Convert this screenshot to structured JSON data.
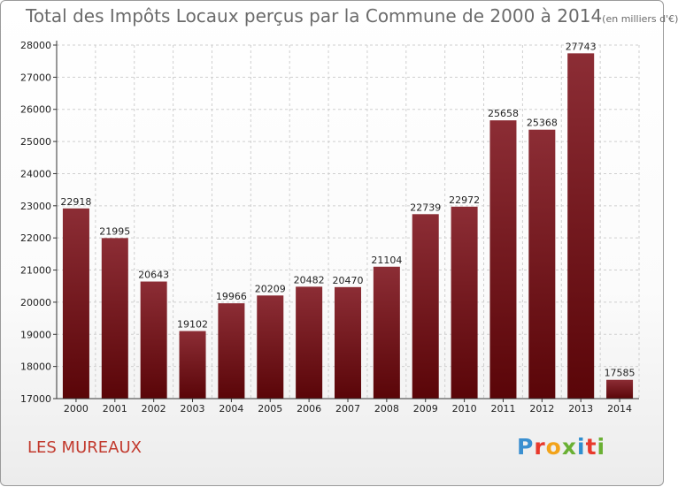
{
  "title": "Total des Impôts Locaux perçus par la Commune de 2000 à 2014",
  "unit": "(en milliers d'€)",
  "commune": "LES MUREAUX",
  "logo": {
    "text": "Proxiti",
    "letters": [
      "P",
      "r",
      "o",
      "x",
      "i",
      "t",
      "i"
    ],
    "colors": [
      "#3a8fd0",
      "#e8392c",
      "#f2a31a",
      "#6ab033",
      "#2f8ecf",
      "#e8392c",
      "#6ab033"
    ]
  },
  "colors": {
    "bar_top": "#8c2d35",
    "bar_bottom": "#5a0508",
    "grid": "#cfcfcf"
  },
  "chart_data": {
    "type": "bar",
    "title": "Total des Impôts Locaux perçus par la Commune de 2000 à 2014 (en milliers d'€)",
    "xlabel": "",
    "ylabel": "",
    "categories": [
      "2000",
      "2001",
      "2002",
      "2003",
      "2004",
      "2005",
      "2006",
      "2007",
      "2008",
      "2009",
      "2010",
      "2011",
      "2012",
      "2013",
      "2014"
    ],
    "values": [
      22918,
      21995,
      20643,
      19102,
      19966,
      20209,
      20482,
      20470,
      21104,
      22739,
      22972,
      25658,
      25368,
      27743,
      17585
    ],
    "value_labels": [
      "22918",
      "21995",
      "20643",
      "19102",
      "19966",
      "20209",
      "20482",
      "20470",
      "21104",
      "22739",
      "22972",
      "25658",
      "25368",
      "27743",
      "17585"
    ],
    "ylim": [
      17000,
      28000
    ],
    "yticks": [
      17000,
      18000,
      19000,
      20000,
      21000,
      22000,
      23000,
      24000,
      25000,
      26000,
      27000,
      28000
    ],
    "ytick_labels": [
      "17000",
      "18000",
      "19000",
      "20000",
      "21000",
      "22000",
      "23000",
      "24000",
      "25000",
      "26000",
      "27000",
      "28000"
    ],
    "grid": true
  }
}
